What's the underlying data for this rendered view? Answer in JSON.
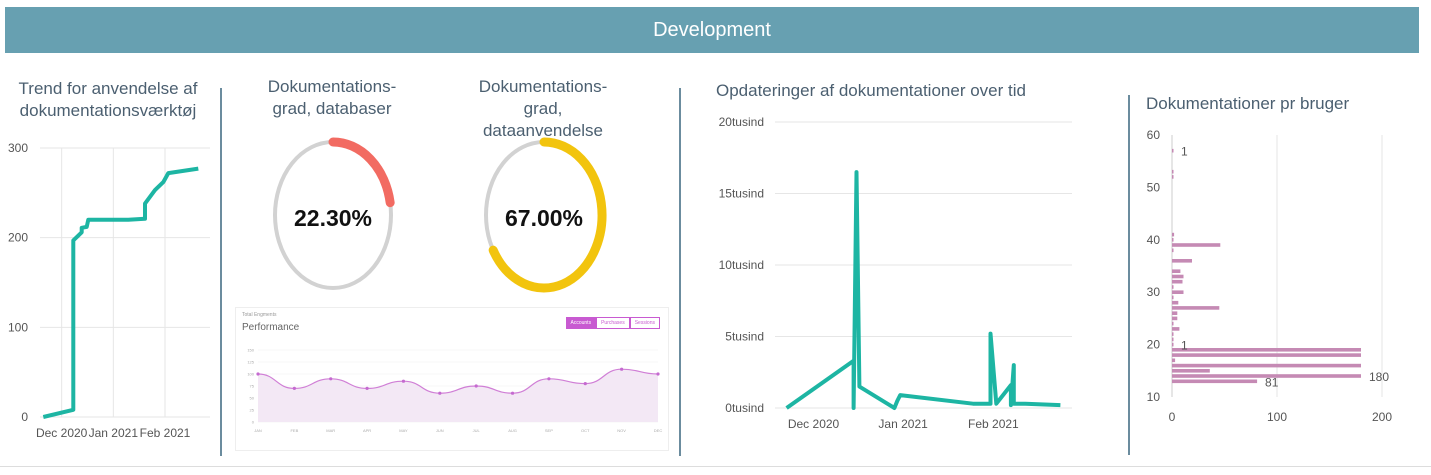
{
  "header": {
    "title": "Development"
  },
  "trend_title": "Trend for anvendelse af dokumentationsværktøj",
  "gauges": [
    {
      "title": "Dokumentations-grad, databaser",
      "value_label": "22.30%",
      "value": 22.3,
      "color": "#f26b62"
    },
    {
      "title": "Dokumentations-grad, dataanvendelse",
      "value_label": "67.00%",
      "value": 67.0,
      "color": "#f2c40e"
    }
  ],
  "performance": {
    "subtitle": "Total Engments",
    "title": "Performance",
    "tabs": [
      {
        "label": "Accounts",
        "active": true
      },
      {
        "label": "Purchases",
        "active": false
      },
      {
        "label": "Sessions",
        "active": false
      }
    ],
    "months": [
      "JAN",
      "FEB",
      "MAR",
      "APR",
      "MAY",
      "JUN",
      "JUL",
      "AUG",
      "SEP",
      "OCT",
      "NOV",
      "DEC"
    ],
    "y_ticks": [
      "150",
      "125",
      "100",
      "75",
      "50",
      "25",
      "0"
    ]
  },
  "updates_title": "Opdateringer af dokumentationer over tid",
  "users_title": "Dokumentationer pr bruger",
  "colors": {
    "teal": "#1db5a3",
    "pink": "#c58ab4",
    "purple": "#c56ad0",
    "grid": "#e6e6e6"
  },
  "chart_data": [
    {
      "type": "line",
      "title": "Trend for anvendelse af dokumentationsværktøj",
      "x_ticks": [
        "Dec 2020",
        "Jan 2021",
        "Feb 2021"
      ],
      "y_ticks": [
        0,
        100,
        200,
        300
      ],
      "ylim": [
        0,
        300
      ],
      "x": [
        "2020-11-20",
        "2020-12-08",
        "2020-12-08",
        "2020-12-13",
        "2020-12-13",
        "2020-12-16",
        "2020-12-17",
        "2021-01-10",
        "2021-01-20",
        "2021-01-20",
        "2021-01-26",
        "2021-01-31",
        "2021-02-03",
        "2021-02-21"
      ],
      "y": [
        0,
        8,
        197,
        206,
        211,
        212,
        220,
        220,
        221,
        238,
        253,
        262,
        272,
        277
      ],
      "color": "#1db5a3"
    },
    {
      "type": "line",
      "title": "Opdateringer af dokumentationer over tid",
      "x_ticks": [
        "Dec 2020",
        "Jan 2021",
        "Feb 2021"
      ],
      "y_ticks": [
        "0tusind",
        "5tusind",
        "10tusind",
        "15tusind",
        "20tusind"
      ],
      "ylim": [
        0,
        20000
      ],
      "x": [
        "2020-11-22",
        "2020-12-15",
        "2020-12-15",
        "2020-12-16",
        "2020-12-17",
        "2020-12-29",
        "2020-12-30",
        "2020-12-31",
        "2021-01-25",
        "2021-01-31",
        "2021-01-31",
        "2021-02-02",
        "2021-02-07",
        "2021-02-07",
        "2021-02-08",
        "2021-02-08",
        "2021-02-09",
        "2021-02-12",
        "2021-02-24"
      ],
      "y": [
        0,
        3300,
        0,
        16500,
        1500,
        0,
        500,
        900,
        300,
        300,
        5200,
        300,
        1600,
        200,
        3000,
        300,
        300,
        300,
        200
      ],
      "color": "#1db5a3"
    },
    {
      "type": "bar",
      "orientation": "horizontal",
      "title": "Dokumentationer pr bruger",
      "y_ticks": [
        10,
        20,
        30,
        40,
        50,
        60
      ],
      "x_ticks": [
        0,
        100,
        200
      ],
      "ylim": [
        10,
        60
      ],
      "xlim": [
        0,
        200
      ],
      "categories": [
        57,
        53,
        52,
        41,
        40,
        39,
        38,
        36,
        34,
        33,
        32,
        31,
        30,
        29,
        28,
        27,
        26,
        25,
        24,
        23,
        22,
        21,
        20,
        19,
        18,
        17,
        16,
        15,
        14,
        13
      ],
      "values": [
        1,
        1,
        1,
        2,
        1,
        46,
        1,
        19,
        8,
        11,
        10,
        1,
        11,
        1,
        6,
        45,
        5,
        5,
        1,
        7,
        1,
        1,
        1,
        180,
        180,
        3,
        180,
        36,
        180,
        81
      ],
      "data_labels": [
        {
          "y": 57,
          "text": "1"
        },
        {
          "y": 20,
          "text": "1"
        },
        {
          "y": 14,
          "text": "180"
        },
        {
          "y": 13,
          "text": "81"
        }
      ],
      "color": "#c58ab4"
    }
  ]
}
